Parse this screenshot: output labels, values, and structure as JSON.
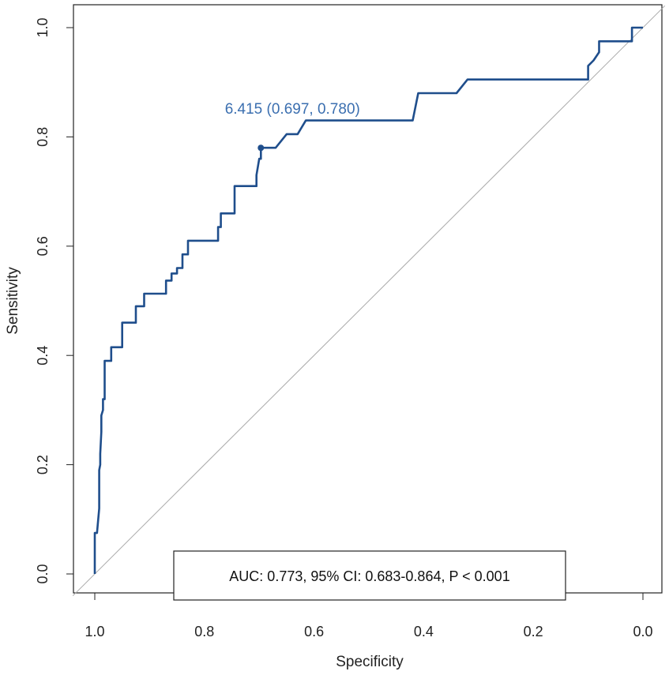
{
  "chart_data": {
    "type": "line",
    "title": "",
    "xlabel": "Specificity",
    "ylabel": "Sensitivity",
    "x_reversed": true,
    "xlim": [
      1.0,
      0.0
    ],
    "ylim": [
      0.0,
      1.0
    ],
    "x_ticks": [
      {
        "value": 1.0,
        "label": "1.0"
      },
      {
        "value": 0.8,
        "label": "0.8"
      },
      {
        "value": 0.6,
        "label": "0.6"
      },
      {
        "value": 0.4,
        "label": "0.4"
      },
      {
        "value": 0.2,
        "label": "0.2"
      },
      {
        "value": 0.0,
        "label": "0.0"
      }
    ],
    "y_ticks": [
      {
        "value": 0.0,
        "label": "0.0"
      },
      {
        "value": 0.2,
        "label": "0.2"
      },
      {
        "value": 0.4,
        "label": "0.4"
      },
      {
        "value": 0.6,
        "label": "0.6"
      },
      {
        "value": 0.8,
        "label": "0.8"
      },
      {
        "value": 1.0,
        "label": "1.0"
      }
    ],
    "series": [
      {
        "name": "ROC",
        "color": "#1f4e8c",
        "specificity": [
          1.0,
          1.0,
          0.996,
          0.992,
          0.992,
          0.99,
          0.99,
          0.988,
          0.988,
          0.985,
          0.985,
          0.982,
          0.982,
          0.978,
          0.978,
          0.97,
          0.97,
          0.95,
          0.95,
          0.925,
          0.925,
          0.91,
          0.91,
          0.87,
          0.87,
          0.86,
          0.86,
          0.85,
          0.85,
          0.84,
          0.84,
          0.83,
          0.83,
          0.82,
          0.82,
          0.775,
          0.775,
          0.77,
          0.77,
          0.76,
          0.76,
          0.745,
          0.745,
          0.705,
          0.705,
          0.7,
          0.697,
          0.697,
          0.67,
          0.65,
          0.65,
          0.63,
          0.615,
          0.615,
          0.42,
          0.41,
          0.405,
          0.34,
          0.32,
          0.1,
          0.1,
          0.09,
          0.08,
          0.08,
          0.025,
          0.02,
          0.02,
          0.0
        ],
        "sensitivity": [
          0.0,
          0.075,
          0.075,
          0.12,
          0.19,
          0.2,
          0.22,
          0.26,
          0.29,
          0.3,
          0.32,
          0.32,
          0.39,
          0.39,
          0.39,
          0.39,
          0.415,
          0.415,
          0.46,
          0.46,
          0.49,
          0.49,
          0.513,
          0.513,
          0.537,
          0.537,
          0.55,
          0.55,
          0.56,
          0.56,
          0.585,
          0.585,
          0.61,
          0.61,
          0.61,
          0.61,
          0.635,
          0.635,
          0.66,
          0.66,
          0.66,
          0.66,
          0.71,
          0.71,
          0.73,
          0.76,
          0.76,
          0.78,
          0.78,
          0.805,
          0.805,
          0.805,
          0.83,
          0.83,
          0.83,
          0.88,
          0.88,
          0.88,
          0.905,
          0.905,
          0.93,
          0.94,
          0.955,
          0.975,
          0.975,
          0.975,
          1.0,
          1.0
        ]
      }
    ],
    "reference_line": {
      "from": [
        1.0,
        0.0
      ],
      "to": [
        0.0,
        1.0
      ],
      "color": "#aaaaaa"
    },
    "best_threshold": {
      "specificity": 0.697,
      "sensitivity": 0.78,
      "label": "6.415 (0.697, 0.780)",
      "color": "#1f4e8c",
      "label_color": "#3b6fb0"
    },
    "legend": {
      "text": "AUC: 0.773, 95% CI: 0.683-0.864, P < 0.001",
      "placement": "bottom-center"
    }
  }
}
